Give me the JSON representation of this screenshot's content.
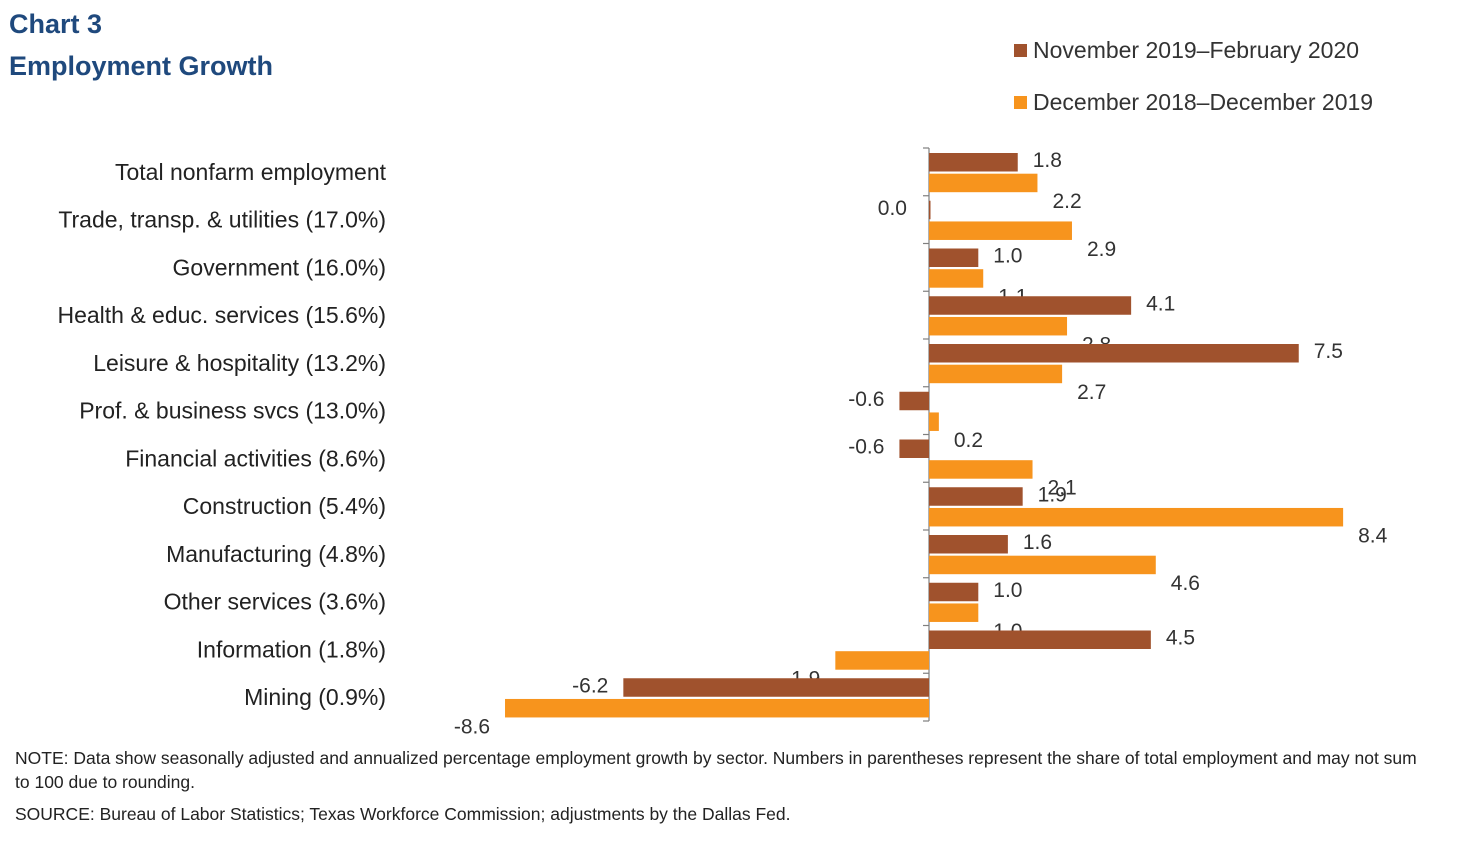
{
  "title_line1": "Chart 3",
  "title_line2": "Employment Growth",
  "note": "NOTE: Data show seasonally adjusted and annualized percentage employment growth by sector. Numbers in parentheses represent the share of total employment and may not sum to 100 due to rounding.",
  "source": "SOURCE: Bureau of Labor Statistics; Texas Workforce Commission; adjustments by the Dallas Fed.",
  "chart_data": {
    "type": "bar",
    "orientation": "horizontal",
    "title": "Employment Growth",
    "xlabel": "",
    "ylabel": "",
    "xlim": [
      -8.6,
      8.4
    ],
    "grid": false,
    "legend_position": "top-right",
    "categories": [
      "Total nonfarm employment",
      "Trade, transp. & utilities (17.0%)",
      "Government (16.0%)",
      "Health & educ. services (15.6%)",
      "Leisure & hospitality (13.2%)",
      "Prof. & business svcs (13.0%)",
      "Financial activities (8.6%)",
      "Construction (5.4%)",
      "Manufacturing (4.8%)",
      "Other services (3.6%)",
      "Information (1.8%)",
      "Mining (0.9%)"
    ],
    "series": [
      {
        "name": "November 2019–February 2020",
        "color": "#a0522d",
        "values": [
          1.8,
          0.0,
          1.0,
          4.1,
          7.5,
          -0.6,
          -0.6,
          1.9,
          1.6,
          1.0,
          4.5,
          -6.2
        ],
        "labels": [
          "1.8",
          "0.0",
          "1.0",
          "4.1",
          "7.5",
          "-0.6",
          "-0.6",
          "1.9",
          "1.6",
          "1.0",
          "4.5",
          "-6.2"
        ]
      },
      {
        "name": "December 2018–December 2019",
        "color": "#f7941d",
        "values": [
          2.2,
          2.9,
          1.1,
          2.8,
          2.7,
          0.2,
          2.1,
          8.4,
          4.6,
          1.0,
          -1.9,
          -8.6
        ],
        "labels": [
          "2.2",
          "2.9",
          "1.1",
          "2.8",
          "2.7",
          "0.2",
          "2.1",
          "8.4",
          "4.6",
          "1.0",
          "-1.9",
          "-8.6"
        ]
      }
    ]
  }
}
